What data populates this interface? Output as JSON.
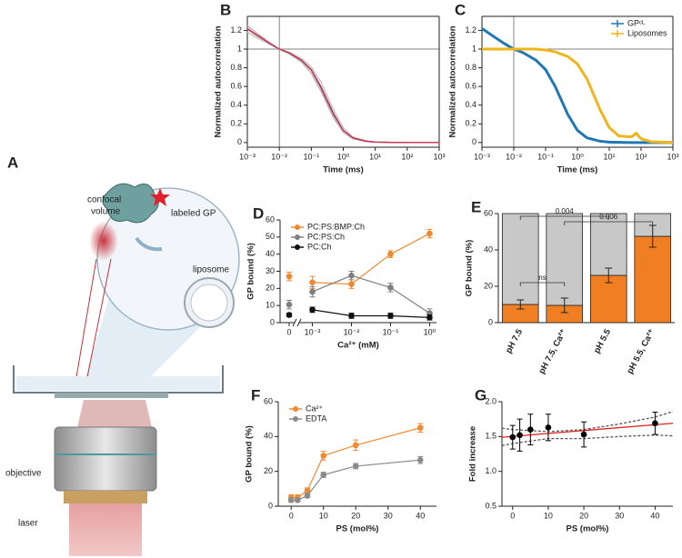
{
  "illustration": {
    "panel": "A",
    "labels": [
      "labeled GP",
      "confocal",
      "volume",
      "liposome",
      "objective",
      "laser"
    ]
  },
  "chart_data": [
    {
      "type": "line",
      "panel": "B",
      "xlabel": "Time (ms)",
      "ylabel": "Normalized autocorrelation",
      "log_x": true,
      "frame": true,
      "x": [
        0.001,
        0.002,
        0.005,
        0.01,
        0.02,
        0.05,
        0.1,
        0.2,
        0.5,
        1,
        2,
        5,
        10,
        100,
        1000
      ],
      "xlim": [
        0.001,
        1000
      ],
      "ylim": [
        -0.05,
        1.35
      ],
      "xticks": [
        {
          "value": 0.001,
          "label": "10⁻³"
        },
        {
          "value": 0.01,
          "label": "10⁻²"
        },
        {
          "value": 0.1,
          "label": "10⁻¹"
        },
        {
          "value": 1,
          "label": "10⁰"
        },
        {
          "value": 10,
          "label": "10¹"
        },
        {
          "value": 100,
          "label": "10²"
        },
        {
          "value": 1000,
          "label": "10³"
        }
      ],
      "yticks": [
        0,
        0.2,
        0.4,
        0.6,
        0.8,
        1,
        1.2
      ],
      "hline": 1,
      "vline": 0.01,
      "series": [
        {
          "color": "#b5b5b5",
          "values": [
            1.25,
            1.17,
            1.07,
            1.0,
            0.95,
            0.86,
            0.74,
            0.55,
            0.26,
            0.11,
            0.04,
            0.012,
            0.004,
            0,
            0
          ]
        },
        {
          "color": "#c4c4c4",
          "values": [
            1.18,
            1.12,
            1.05,
            1.0,
            0.97,
            0.9,
            0.81,
            0.65,
            0.35,
            0.16,
            0.06,
            0.02,
            0.006,
            0,
            0
          ]
        },
        {
          "color": "#a8a8a8",
          "values": [
            1.21,
            1.14,
            1.06,
            1.0,
            0.96,
            0.87,
            0.77,
            0.58,
            0.29,
            0.13,
            0.05,
            0.015,
            0.005,
            0,
            0
          ]
        },
        {
          "color": "#3a4fa0",
          "values": [
            1.22,
            1.15,
            1.06,
            1.0,
            0.96,
            0.88,
            0.78,
            0.6,
            0.31,
            0.13,
            0.05,
            0.015,
            0.005,
            0,
            0
          ]
        },
        {
          "color": "#d6304a",
          "values": [
            1.22,
            1.15,
            1.06,
            1.0,
            0.96,
            0.88,
            0.78,
            0.59,
            0.3,
            0.13,
            0.05,
            0.015,
            0.005,
            0,
            0
          ]
        }
      ]
    },
    {
      "type": "line",
      "panel": "C",
      "log_x": true,
      "frame": true,
      "legend": "upper right",
      "xlabel": "Time (ms)",
      "ylabel": "Normalized autocorrelation",
      "x": [
        0.001,
        0.002,
        0.005,
        0.01,
        0.02,
        0.05,
        0.1,
        0.2,
        0.5,
        1,
        2,
        5,
        10,
        20,
        50,
        70,
        100,
        200,
        1000
      ],
      "xlim": [
        0.001,
        1000
      ],
      "ylim": [
        -0.05,
        1.35
      ],
      "xticks": [
        {
          "value": 0.001,
          "label": "10⁻³"
        },
        {
          "value": 0.01,
          "label": "10⁻²"
        },
        {
          "value": 0.1,
          "label": "10⁻¹"
        },
        {
          "value": 1,
          "label": "10⁰"
        },
        {
          "value": 10,
          "label": "10¹"
        },
        {
          "value": 100,
          "label": "10²"
        },
        {
          "value": 1000,
          "label": "10³"
        }
      ],
      "yticks": [
        0,
        0.2,
        0.4,
        0.6,
        0.8,
        1,
        1.2
      ],
      "hline": 1,
      "vline": 0.01,
      "series": [
        {
          "name": "GPᶜᴸ",
          "color": "#1f77b4",
          "values": [
            1.22,
            1.15,
            1.06,
            1.0,
            0.96,
            0.88,
            0.78,
            0.6,
            0.3,
            0.13,
            0.05,
            0.015,
            0.005,
            0.002,
            0,
            0,
            0,
            0,
            0
          ]
        },
        {
          "name": "Liposomes",
          "color": "#f0b41c",
          "values": [
            1,
            1,
            1,
            1,
            1,
            1,
            0.99,
            0.97,
            0.92,
            0.84,
            0.68,
            0.36,
            0.16,
            0.07,
            0.06,
            0.1,
            0.04,
            0.01,
            0
          ]
        }
      ]
    },
    {
      "type": "line",
      "panel": "D",
      "log_x": true,
      "legend": "upper left",
      "xlabel": "Ca²⁺ (mM)",
      "ylabel": "GP bound (%)",
      "x": [
        0,
        0.001,
        0.01,
        0.1,
        1
      ],
      "xlim": [
        0.0006,
        1.5
      ],
      "ylim": [
        0,
        60
      ],
      "xticks": [
        0,
        {
          "value": 0.001,
          "label": "10⁻³"
        },
        {
          "value": 0.01,
          "label": "10⁻²"
        },
        {
          "value": 0.1,
          "label": "10⁻¹"
        },
        {
          "value": 1,
          "label": "10⁰"
        }
      ],
      "yticks": [
        0,
        10,
        20,
        30,
        40,
        50,
        60
      ],
      "series": [
        {
          "name": "PC:PS:BMP:Ch",
          "color": "#f08a30",
          "markers": true,
          "values": [
            27,
            23.5,
            22.5,
            40,
            52
          ],
          "errors": [
            2.5,
            3.5,
            2.5,
            2,
            2.5
          ]
        },
        {
          "name": "PC:PS:Ch",
          "color": "#7f7f7f",
          "markers": true,
          "values": [
            10.5,
            18,
            27.5,
            20.5,
            5.5
          ],
          "errors": [
            2.5,
            3,
            2.5,
            2.5,
            2.5
          ]
        },
        {
          "name": "PC:Ch",
          "color": "#111111",
          "markers": true,
          "values": [
            4.5,
            7.5,
            4,
            4,
            3
          ],
          "errors": [
            1,
            1.5,
            1.5,
            1.5,
            1.5
          ]
        }
      ]
    },
    {
      "type": "bar",
      "panel": "E",
      "ylabel": "GP bound (%)",
      "stacked": true,
      "categories": [
        "pH 7.5",
        "pH 7.5, Ca²⁺",
        "pH 5.5",
        "pH 5.5, Ca²⁺"
      ],
      "ylim": [
        0,
        60
      ],
      "yticks": [
        0,
        20,
        40,
        60
      ],
      "series": [
        {
          "color": "#f07f24",
          "values": [
            10,
            9.5,
            26,
            47.5
          ],
          "errors": [
            2.5,
            4,
            4,
            6
          ]
        },
        {
          "color": "#c8c8c8",
          "values": [
            50,
            50.5,
            34,
            12.5
          ]
        }
      ],
      "annotations": [
        "0.004",
        "0.006",
        "ns"
      ]
    },
    {
      "type": "line",
      "panel": "F",
      "legend": "upper left",
      "xlabel": "PS (mol%)",
      "ylabel": "GP bound (%)",
      "x": [
        0,
        2,
        5,
        10,
        20,
        40
      ],
      "xlim": [
        -4,
        45
      ],
      "ylim": [
        0,
        60
      ],
      "xticks": [
        0,
        10,
        20,
        30,
        40
      ],
      "yticks": [
        0,
        20,
        40,
        60
      ],
      "series": [
        {
          "name": "Ca²⁺",
          "color": "#f08a30",
          "markers": true,
          "values": [
            5,
            5,
            9,
            29,
            35,
            45
          ],
          "errors": [
            1.5,
            1.5,
            1.5,
            2.5,
            3,
            2.5
          ]
        },
        {
          "name": "EDTA",
          "color": "#8a8a8a",
          "markers": true,
          "values": [
            3.5,
            3.5,
            6,
            18,
            23,
            26.5
          ],
          "errors": [
            1,
            1,
            1,
            1.5,
            1.5,
            2
          ]
        }
      ]
    },
    {
      "type": "scatter",
      "panel": "G",
      "xlabel": "PS (mol%)",
      "ylabel": "Fold increase",
      "x": [
        0,
        2,
        5,
        10,
        20,
        40
      ],
      "xlim": [
        -3,
        45
      ],
      "ylim": [
        0.5,
        2.0
      ],
      "xticks": [
        0,
        10,
        20,
        30,
        40
      ],
      "yticks": [
        0.5,
        {
          "value": 1,
          "label": "1.0"
        },
        1.5,
        {
          "value": 2,
          "label": "2.0"
        }
      ],
      "series": [
        {
          "color": "#e02020",
          "line": true,
          "x": [
            -3,
            45
          ],
          "values": [
            1.49,
            1.69
          ]
        },
        {
          "color": "#555555",
          "line": true,
          "dashed": true,
          "x": [
            -3,
            0,
            10,
            20,
            30,
            40,
            45
          ],
          "values": [
            1.62,
            1.6,
            1.57,
            1.6,
            1.68,
            1.78,
            1.86
          ]
        },
        {
          "color": "#555555",
          "line": true,
          "dashed": true,
          "x": [
            -3,
            0,
            10,
            20,
            30,
            40,
            45
          ],
          "values": [
            1.37,
            1.4,
            1.47,
            1.47,
            1.5,
            1.52,
            1.51
          ]
        },
        {
          "color": "#000000",
          "markers": true,
          "values": [
            1.49,
            1.52,
            1.6,
            1.63,
            1.53,
            1.69
          ],
          "errors": [
            0.17,
            0.23,
            0.22,
            0.19,
            0.18,
            0.16
          ]
        }
      ]
    }
  ]
}
